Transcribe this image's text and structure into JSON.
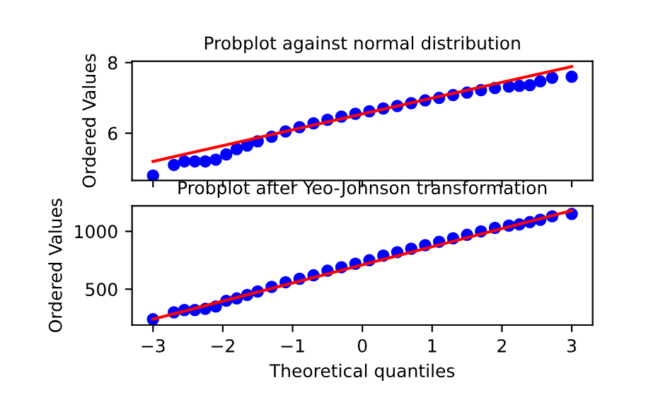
{
  "chart_data": [
    {
      "type": "scatter",
      "title": "Probplot against normal distribution",
      "ylabel": "Ordered Values",
      "xlim": [
        -3.3,
        3.3
      ],
      "ylim": [
        4.66,
        8.04
      ],
      "xticks": [
        -3,
        -2,
        -1,
        0,
        1,
        2,
        3
      ],
      "yticks": [
        6,
        8
      ],
      "tick_labels": "y",
      "series": [
        {
          "color": "#0000ff",
          "marker": "circle",
          "x": [
            -3,
            -2.7,
            -2.55,
            -2.4,
            -2.25,
            -2.1,
            -1.95,
            -1.8,
            -1.65,
            -1.5,
            -1.3,
            -1.1,
            -0.9,
            -0.7,
            -0.5,
            -0.3,
            -0.1,
            0.1,
            0.3,
            0.5,
            0.7,
            0.9,
            1.1,
            1.3,
            1.5,
            1.7,
            1.9,
            2.1,
            2.25,
            2.4,
            2.55,
            2.72,
            3
          ],
          "values": [
            4.8,
            5.1,
            5.2,
            5.2,
            5.2,
            5.25,
            5.4,
            5.55,
            5.65,
            5.77,
            5.9,
            6.05,
            6.17,
            6.28,
            6.38,
            6.47,
            6.55,
            6.62,
            6.7,
            6.77,
            6.85,
            6.93,
            7.0,
            7.08,
            7.15,
            7.22,
            7.28,
            7.32,
            7.34,
            7.36,
            7.47,
            7.57,
            7.6
          ]
        },
        {
          "type": "line",
          "color": "#ff0000",
          "x": [
            -3,
            3
          ],
          "values": [
            5.2,
            7.89
          ]
        }
      ]
    },
    {
      "type": "scatter",
      "title": "Probplot after Yeo-Johnson transformation",
      "xlabel": "Theoretical quantiles",
      "ylabel": "Ordered Values",
      "xlim": [
        -3.3,
        3.3
      ],
      "ylim": [
        190,
        1220
      ],
      "xticks": [
        {
          "value": -3,
          "label": "−3"
        },
        {
          "value": -2,
          "label": "−2"
        },
        {
          "value": -1,
          "label": "−1"
        },
        0,
        1,
        2,
        3
      ],
      "yticks": [
        500,
        1000
      ],
      "series": [
        {
          "color": "#0000ff",
          "marker": "circle",
          "x": [
            -3,
            -2.7,
            -2.55,
            -2.4,
            -2.25,
            -2.1,
            -1.95,
            -1.8,
            -1.65,
            -1.5,
            -1.3,
            -1.1,
            -0.9,
            -0.7,
            -0.5,
            -0.3,
            -0.1,
            0.1,
            0.3,
            0.5,
            0.7,
            0.9,
            1.1,
            1.3,
            1.5,
            1.7,
            1.9,
            2.1,
            2.25,
            2.4,
            2.55,
            2.72,
            3
          ],
          "values": [
            240,
            300,
            320,
            320,
            330,
            350,
            400,
            420,
            450,
            480,
            520,
            560,
            590,
            620,
            660,
            690,
            720,
            750,
            790,
            820,
            850,
            880,
            910,
            940,
            970,
            1000,
            1030,
            1050,
            1060,
            1080,
            1100,
            1130,
            1150
          ]
        },
        {
          "type": "line",
          "color": "#ff0000",
          "x": [
            -3,
            3
          ],
          "values": [
            240,
            1180
          ]
        }
      ]
    }
  ]
}
